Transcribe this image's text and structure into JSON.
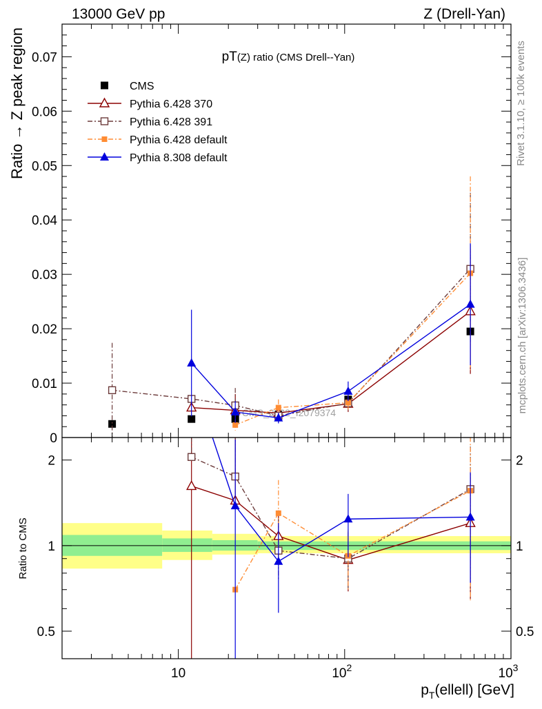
{
  "header": {
    "left": "13000 GeV pp",
    "right": "Z (Drell-Yan)"
  },
  "side_labels": {
    "rivet": "Rivet 3.1.10, ≥ 100k events",
    "mcplots": "mcplots.cern.ch [arXiv:1306.3436]"
  },
  "watermark": "CMS_2022_I2079374",
  "chart_data": [
    {
      "panel": "main",
      "type": "line",
      "title": "pT(Z) ratio (CMS Drell--Yan)",
      "title_main": "pT",
      "title_sub": "(Z) ratio (CMS Drell--Yan)",
      "ylabel": "Ratio → Z peak region",
      "xscale": "log",
      "xlim": [
        2,
        1000
      ],
      "ylim": [
        0,
        0.076
      ],
      "yticks": [
        0,
        0.01,
        0.02,
        0.03,
        0.04,
        0.05,
        0.06,
        0.07
      ],
      "ytick_labels": [
        "0",
        "0.01",
        "0.02",
        "0.03",
        "0.04",
        "0.05",
        "0.06",
        "0.07"
      ],
      "legend_position": "top-left",
      "series": [
        {
          "name": "CMS",
          "style": "data",
          "color": "#000000",
          "marker": "square-filled",
          "x": [
            4,
            12,
            22,
            40,
            105,
            570
          ],
          "y": [
            0.0025,
            0.0034,
            0.0034,
            0.0042,
            0.007,
            0.0195
          ]
        },
        {
          "name": "Pythia 6.428 370",
          "style": "solid",
          "color": "#8b0000",
          "marker": "triangle-open",
          "x": [
            12,
            22,
            40,
            105,
            570
          ],
          "y": [
            0.0055,
            0.005,
            0.0045,
            0.0062,
            0.0232
          ],
          "err": [
            0.0007,
            0.003,
            0.001,
            0.0015,
            0.0115
          ]
        },
        {
          "name": "Pythia 6.428 391",
          "style": "dashdot",
          "color": "#6b3a3a",
          "marker": "square-open",
          "x": [
            4,
            12,
            22,
            40,
            105,
            570
          ],
          "y": [
            0.0087,
            0.0071,
            0.0059,
            0.004,
            0.0063,
            0.031
          ],
          "err": [
            0.0087,
            0.0007,
            0.0032,
            0.0012,
            0.0015,
            0.014
          ]
        },
        {
          "name": "Pythia 6.428 default",
          "style": "dashdot",
          "color": "#ff8c33",
          "marker": "square-filled-small",
          "x": [
            22,
            40,
            105,
            570
          ],
          "y": [
            0.0023,
            0.0055,
            0.0064,
            0.0302
          ],
          "err": [
            0.001,
            0.0015,
            0.0015,
            0.0178
          ]
        },
        {
          "name": "Pythia 8.308 default",
          "style": "solid",
          "color": "#0000dd",
          "marker": "triangle-filled",
          "x": [
            12,
            22,
            40,
            105,
            570
          ],
          "y": [
            0.0137,
            0.0047,
            0.0036,
            0.0085,
            0.0245
          ],
          "err": [
            0.0098,
            0.002,
            0.001,
            0.0018,
            0.0112
          ]
        }
      ]
    },
    {
      "panel": "ratio",
      "type": "line",
      "ylabel": "Ratio to CMS",
      "xlabel_main": "p",
      "xlabel_sub": "T",
      "xlabel_rest": "(ellell) [GeV]",
      "xscale": "log",
      "yscale": "log",
      "xlim": [
        2,
        1000
      ],
      "ylim": [
        0.4,
        2.4
      ],
      "yticks": [
        0.5,
        1,
        2
      ],
      "ytick_labels": [
        "0.5",
        "1",
        "2"
      ],
      "xticks": [
        10,
        100,
        1000
      ],
      "xtick_labels": [
        [
          "10",
          ""
        ],
        [
          "10",
          "2"
        ],
        [
          "10",
          "3"
        ]
      ],
      "bands": {
        "inner_color": "#90ee90",
        "outer_color": "#ffff88",
        "bins": [
          {
            "x0": 2,
            "x1": 8,
            "inner": [
              0.92,
              1.09
            ],
            "outer": [
              0.83,
              1.2
            ]
          },
          {
            "x0": 8,
            "x1": 16,
            "inner": [
              0.95,
              1.06
            ],
            "outer": [
              0.89,
              1.13
            ]
          },
          {
            "x0": 16,
            "x1": 30,
            "inner": [
              0.96,
              1.045
            ],
            "outer": [
              0.93,
              1.1
            ]
          },
          {
            "x0": 30,
            "x1": 1000,
            "inner": [
              0.965,
              1.035
            ],
            "outer": [
              0.94,
              1.08
            ]
          }
        ]
      },
      "series": [
        {
          "name": "Pythia 6.428 370",
          "style": "solid",
          "color": "#8b0000",
          "marker": "triangle-open",
          "x": [
            12,
            22,
            40,
            105,
            570
          ],
          "y": [
            1.62,
            1.44,
            1.08,
            0.89,
            1.2
          ],
          "err_lo": [
            1.22,
            0.0,
            0.2,
            0.2,
            0.55
          ],
          "err_hi": [
            0.0,
            0.0,
            0.25,
            0.22,
            0.6
          ]
        },
        {
          "name": "Pythia 6.428 391",
          "style": "dashdot",
          "color": "#6b3a3a",
          "marker": "square-open",
          "x": [
            12,
            22,
            40,
            105,
            570
          ],
          "y": [
            2.05,
            1.75,
            0.96,
            0.9,
            1.58
          ],
          "err_lo": [
            0.0,
            0.0,
            0.2,
            0.2,
            0.85
          ],
          "err_hi": [
            0.0,
            0.0,
            0.28,
            0.22,
            0.65
          ]
        },
        {
          "name": "Pythia 6.428 default",
          "style": "dashdot",
          "color": "#ff8c33",
          "marker": "square-filled-small",
          "x": [
            22,
            40,
            105,
            570
          ],
          "y": [
            0.7,
            1.3,
            0.92,
            1.56
          ],
          "err_lo": [
            0.0,
            0.35,
            0.22,
            0.92
          ],
          "err_hi": [
            0.0,
            0.4,
            0.22,
            0.85
          ]
        },
        {
          "name": "Pythia 8.308 default",
          "style": "solid",
          "color": "#0000dd",
          "marker": "triangle-filled",
          "x": [
            12,
            22,
            40,
            105,
            570
          ],
          "y": [
            4.0,
            1.38,
            0.88,
            1.24,
            1.26
          ],
          "err_lo": [
            0.0,
            0.98,
            0.3,
            0.33,
            0.52
          ],
          "err_hi": [
            0.0,
            0.98,
            0.32,
            0.28,
            0.55
          ]
        }
      ]
    }
  ]
}
